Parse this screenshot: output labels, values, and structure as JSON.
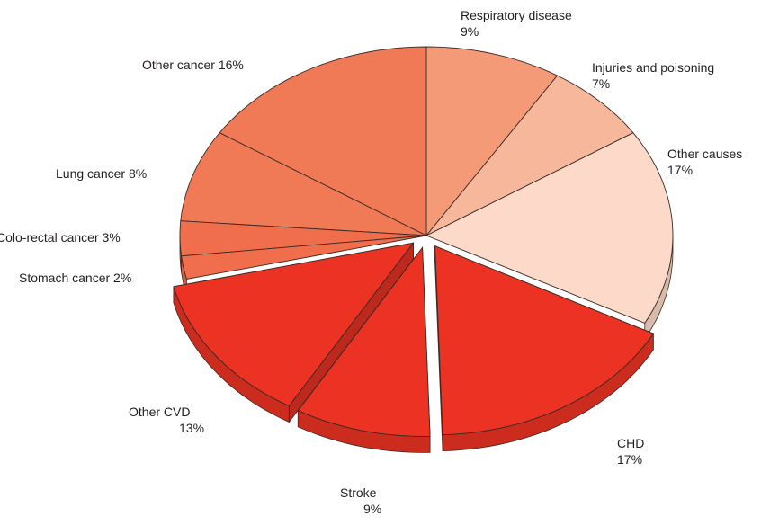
{
  "chart_data": {
    "type": "pie",
    "style": "3d-exploded",
    "slices": [
      {
        "label": "Respiratory disease",
        "value": 9,
        "value_label": "9%",
        "color": "#f49a77",
        "exploded": false
      },
      {
        "label": "Injuries and poisoning",
        "value": 7,
        "value_label": "7%",
        "color": "#f7b79b",
        "exploded": false
      },
      {
        "label": "Other causes",
        "value": 17,
        "value_label": "17%",
        "color": "#fcd9c8",
        "exploded": false
      },
      {
        "label": "CHD",
        "value": 17,
        "value_label": "17%",
        "color": "#ec3323",
        "exploded": true
      },
      {
        "label": "Stroke",
        "value": 9,
        "value_label": "9%",
        "color": "#ec3323",
        "exploded": true
      },
      {
        "label": "Other CVD",
        "value": 13,
        "value_label": "13%",
        "color": "#ec3323",
        "exploded": true
      },
      {
        "label": "Stomach cancer",
        "value": 2,
        "value_label": "2%",
        "color": "#f06e4c",
        "exploded": false
      },
      {
        "label": "Colo-rectal cancer",
        "value": 3,
        "value_label": "3%",
        "color": "#f06e4c",
        "exploded": false
      },
      {
        "label": "Lung cancer",
        "value": 8,
        "value_label": "8%",
        "color": "#f07a55",
        "exploded": false
      },
      {
        "label": "Other cancer",
        "value": 16,
        "value_label": "16%",
        "color": "#f07a55",
        "exploded": false
      }
    ]
  },
  "labels": {
    "respiratory": {
      "name": "Respiratory disease",
      "pct": "9%"
    },
    "injuries": {
      "name": "Injuries and poisoning",
      "pct": "7%"
    },
    "other_causes": {
      "name": "Other causes",
      "pct": "17%"
    },
    "chd": {
      "name": "CHD",
      "pct": "17%"
    },
    "stroke": {
      "name": "Stroke",
      "pct": "9%"
    },
    "other_cvd": {
      "name": "Other CVD",
      "pct": "13%"
    },
    "stomach": {
      "text": "Stomach cancer 2%"
    },
    "colorectal": {
      "text": "Colo-rectal cancer 3%"
    },
    "lung": {
      "text": "Lung cancer 8%"
    },
    "other_cancer": {
      "text": "Other cancer 16%"
    }
  }
}
